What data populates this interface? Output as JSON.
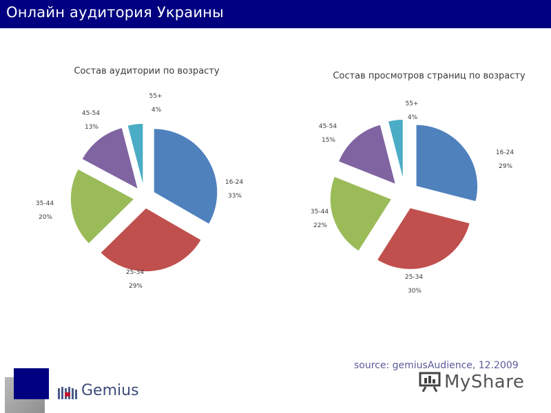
{
  "header": {
    "title": "Онлайн аудитория Украины"
  },
  "colors": {
    "header_bg": "#000080",
    "slices": [
      "#4F81BD",
      "#C0504D",
      "#9BBB59",
      "#8064A2",
      "#4BACC6"
    ]
  },
  "chart_data": [
    {
      "type": "pie",
      "title": "Состав аудитории по возрасту",
      "slices": [
        {
          "label": "16-24",
          "percent_label": "33%",
          "value": 33
        },
        {
          "label": "25-34",
          "percent_label": "29%",
          "value": 29
        },
        {
          "label": "35-44",
          "percent_label": "20%",
          "value": 20
        },
        {
          "label": "45-54",
          "percent_label": "13%",
          "value": 13
        },
        {
          "label": "55+",
          "percent_label": "4%",
          "value": 4
        }
      ],
      "exploded": true
    },
    {
      "type": "pie",
      "title": "Состав просмотров страниц по возрасту",
      "slices": [
        {
          "label": "16-24",
          "percent_label": "29%",
          "value": 29
        },
        {
          "label": "25-34",
          "percent_label": "30%",
          "value": 30
        },
        {
          "label": "35-44",
          "percent_label": "22%",
          "value": 22
        },
        {
          "label": "45-54",
          "percent_label": "15%",
          "value": 15
        },
        {
          "label": "55+",
          "percent_label": "4%",
          "value": 4
        }
      ],
      "exploded": true
    }
  ],
  "footer": {
    "source": "source: gemiusAudience, 12.2009",
    "gemius_logo": "Gemius",
    "myshare_logo": "MyShare"
  }
}
